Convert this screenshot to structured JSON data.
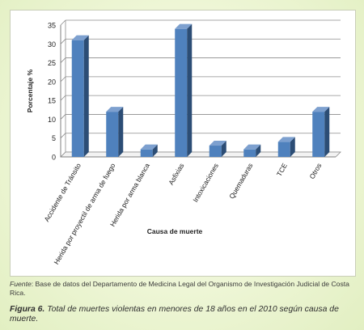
{
  "chart_data": {
    "type": "bar",
    "title": "",
    "xlabel": "Causa de muerte",
    "ylabel": "Porcentaje %",
    "ylim": [
      0,
      35
    ],
    "yticks": [
      0,
      5,
      10,
      15,
      20,
      25,
      30,
      35
    ],
    "grid": true,
    "legend": "none",
    "bar_color": "#4f81bd",
    "categories": [
      "Accidente de Tránsito",
      "Herida por proyectil de arma de fuego",
      "Herida por arma blanca",
      "Asfixias",
      "Intoxicaciones",
      "Quemaduras",
      "TCE",
      "Otros"
    ],
    "values": [
      31,
      12,
      2,
      34,
      3,
      2,
      4,
      12
    ]
  },
  "source": {
    "label": "Fuente",
    "text": ": Base de datos del Departamento de Medicina Legal del Organismo de Investigación Judicial de Costa Rica."
  },
  "caption": {
    "label": "Figura 6.",
    "text": " Total de muertes violentas en menores de 18 años en el 2010 según causa de muerte."
  }
}
